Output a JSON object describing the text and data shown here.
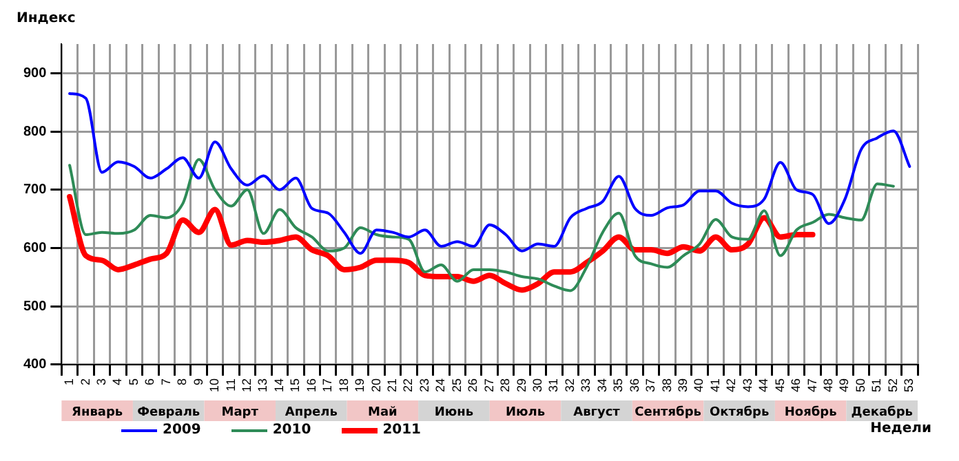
{
  "chart_data": {
    "type": "line",
    "ylabel": "Индекс",
    "xlabel": "Недели",
    "categories": [
      "1",
      "2",
      "3",
      "4",
      "5",
      "6",
      "7",
      "8",
      "9",
      "10",
      "11",
      "12",
      "13",
      "14",
      "15",
      "16",
      "17",
      "18",
      "19",
      "20",
      "21",
      "22",
      "23",
      "24",
      "25",
      "26",
      "27",
      "28",
      "29",
      "30",
      "31",
      "32",
      "33",
      "34",
      "35",
      "36",
      "37",
      "38",
      "39",
      "40",
      "41",
      "42",
      "43",
      "44",
      "45",
      "46",
      "47",
      "48",
      "49",
      "50",
      "51",
      "52",
      "53"
    ],
    "series": [
      {
        "name": "2009",
        "color": "#0000ff",
        "values": [
          865,
          857,
          730,
          748,
          740,
          720,
          736,
          755,
          720,
          782,
          736,
          708,
          724,
          700,
          720,
          668,
          660,
          627,
          591,
          631,
          627,
          619,
          631,
          603,
          611,
          603,
          640,
          623,
          595,
          607,
          603,
          652,
          668,
          680,
          723,
          668,
          656,
          669,
          674,
          698,
          698,
          677,
          671,
          684,
          747,
          700,
          692,
          642,
          684,
          769,
          789,
          801,
          740
        ]
      },
      {
        "name": "2010",
        "color": "#2e8b57",
        "values": [
          742,
          623,
          627,
          625,
          631,
          656,
          652,
          676,
          752,
          700,
          672,
          700,
          625,
          666,
          635,
          619,
          595,
          600,
          635,
          623,
          619,
          615,
          559,
          571,
          543,
          563,
          563,
          559,
          551,
          547,
          535,
          527,
          567,
          627,
          660,
          587,
          573,
          567,
          587,
          607,
          649,
          619,
          615,
          664,
          587,
          631,
          644,
          658,
          652,
          648,
          710,
          706,
          null
        ]
      },
      {
        "name": "2011",
        "color": "#ff0000",
        "values": [
          688,
          587,
          579,
          563,
          571,
          581,
          591,
          648,
          627,
          666,
          605,
          613,
          610,
          613,
          619,
          597,
          587,
          563,
          567,
          579,
          579,
          575,
          553,
          551,
          551,
          543,
          553,
          539,
          528,
          539,
          559,
          559,
          575,
          595,
          619,
          597,
          597,
          591,
          602,
          595,
          619,
          597,
          607,
          652,
          619,
          623,
          623,
          null,
          null,
          null,
          null,
          null,
          null
        ]
      }
    ],
    "ylim": [
      400,
      950
    ],
    "yticks": [
      400,
      500,
      600,
      700,
      800,
      900
    ],
    "grid": true,
    "legend": "bottom left",
    "marker": "none",
    "line_style": "solid",
    "annotations": [
      "Январь",
      "Февраль",
      "Март",
      "Апрель",
      "Май",
      "Июнь",
      "Июль",
      "Август",
      "Сентябрь",
      "Октябрь",
      "Ноябрь",
      "Декабрь"
    ]
  }
}
